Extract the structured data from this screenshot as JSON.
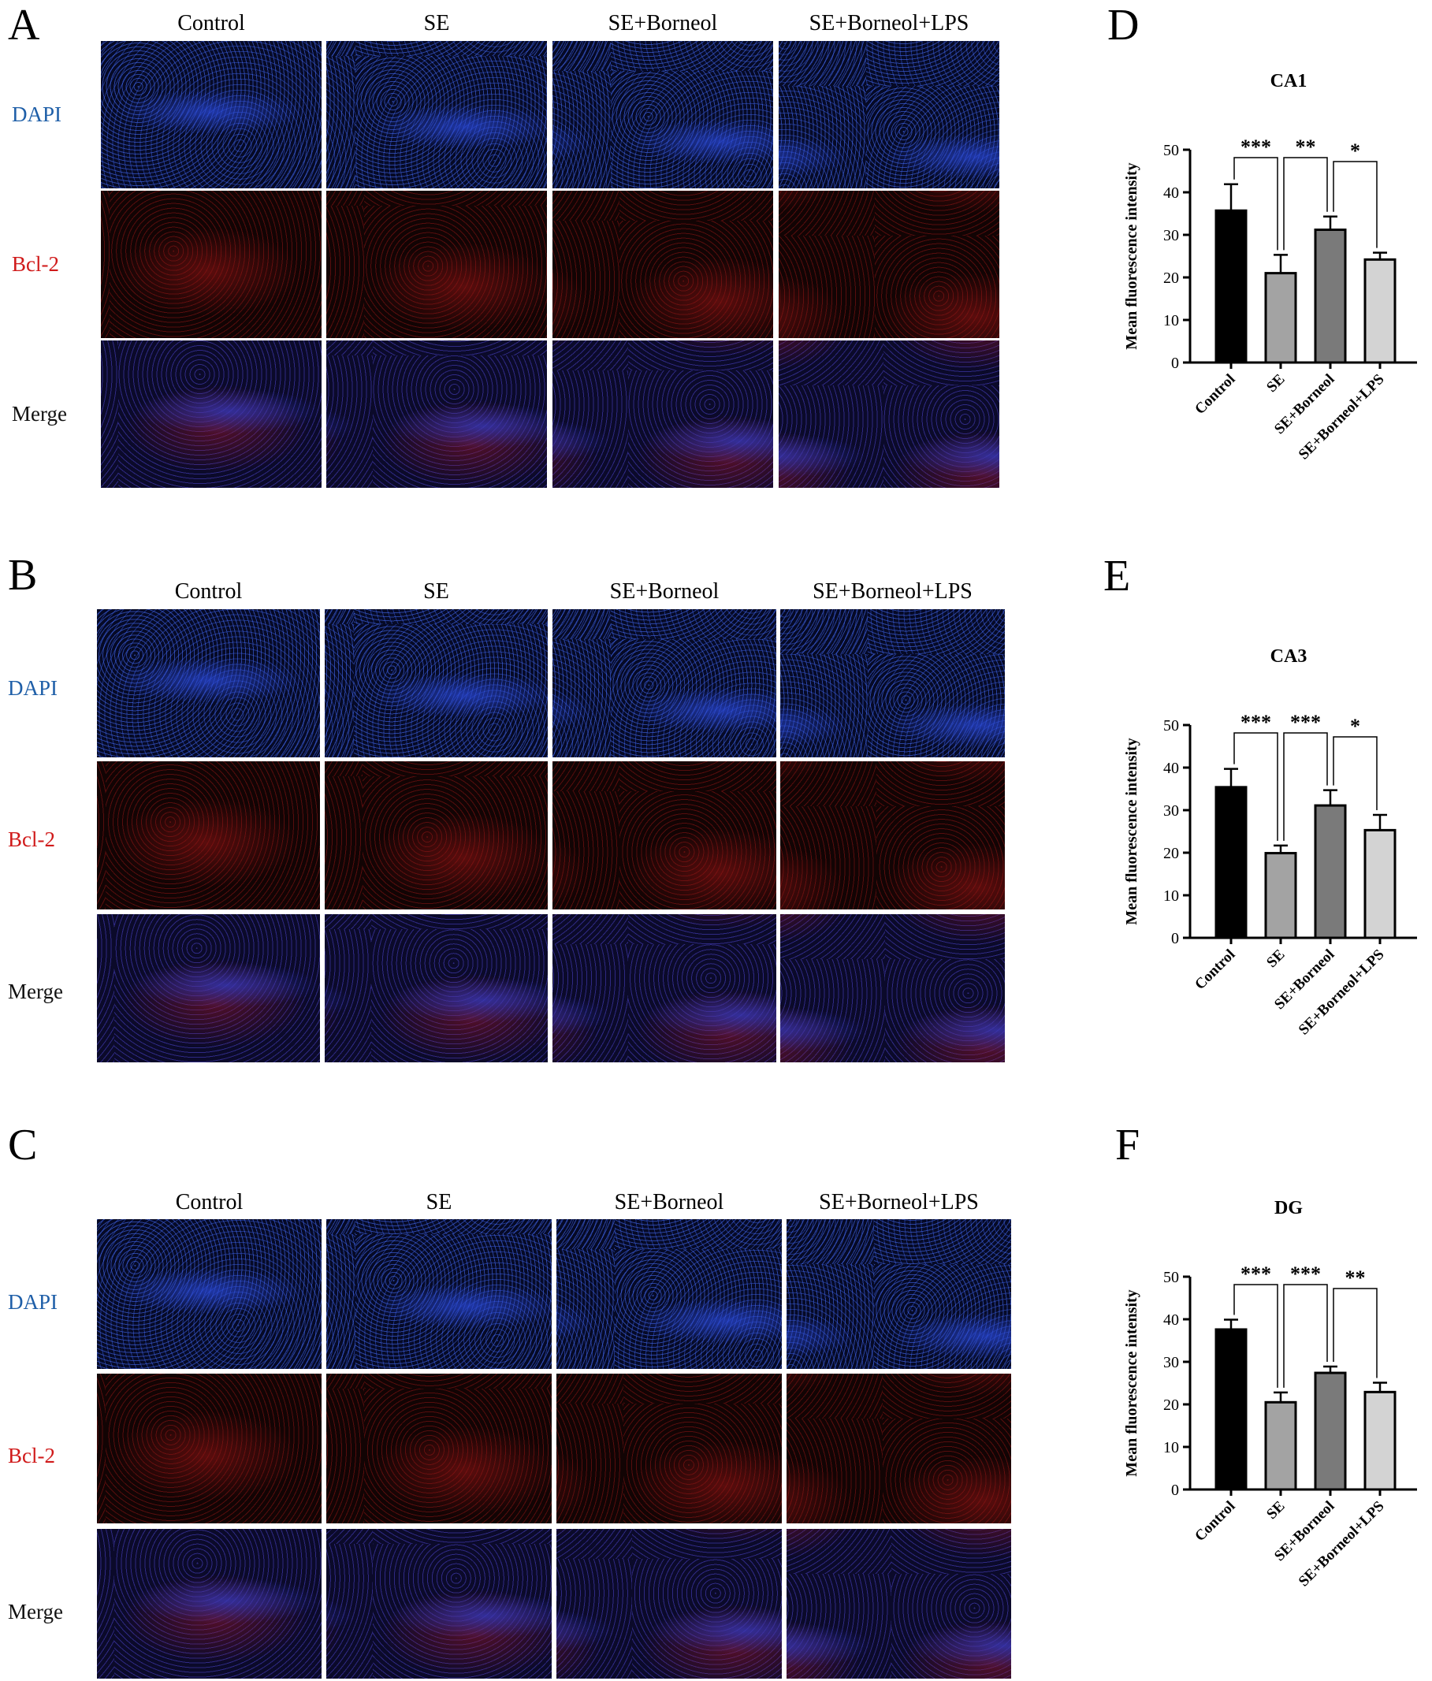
{
  "panels": {
    "a": {
      "letter": "A",
      "columns": [
        "Control",
        "SE",
        "SE+Borneol",
        "SE+Borneol+LPS"
      ],
      "rows": [
        "DAPI",
        "Bcl-2",
        "Merge"
      ]
    },
    "b": {
      "letter": "B",
      "columns": [
        "Control",
        "SE",
        "SE+Borneol",
        "SE+Borneol+LPS"
      ],
      "rows": [
        "DAPI",
        "Bcl-2",
        "Merge"
      ]
    },
    "c": {
      "letter": "C",
      "columns": [
        "Control",
        "SE",
        "SE+Borneol",
        "SE+Borneol+LPS"
      ],
      "rows": [
        "DAPI",
        "Bcl-2",
        "Merge"
      ]
    },
    "d": {
      "letter": "D"
    },
    "e": {
      "letter": "E"
    },
    "f": {
      "letter": "F"
    }
  },
  "colors": {
    "dapi_label": "#1f5fa8",
    "bcl2_label": "#d01a1a",
    "bars": [
      "#000000",
      "#a3a3a3",
      "#7a7a7a",
      "#d3d3d3"
    ]
  },
  "chart_data": [
    {
      "type": "bar",
      "title": "CA1",
      "ylabel": "Mean fluorescence intensity",
      "categories": [
        "Control",
        "SE",
        "SE+Borneol",
        "SE+Borneol+LPS"
      ],
      "values": [
        35.7,
        21.0,
        31.2,
        24.2
      ],
      "errors": [
        6.2,
        4.3,
        3.1,
        1.6
      ],
      "ylim": [
        0,
        50
      ],
      "yticks": [
        0,
        10,
        20,
        30,
        40,
        50
      ],
      "significance": [
        {
          "from": 0,
          "to": 1,
          "label": "***"
        },
        {
          "from": 1,
          "to": 2,
          "label": "**"
        },
        {
          "from": 2,
          "to": 3,
          "label": "*"
        }
      ]
    },
    {
      "type": "bar",
      "title": "CA3",
      "ylabel": "Mean fluorescence intensity",
      "categories": [
        "Control",
        "SE",
        "SE+Borneol",
        "SE+Borneol+LPS"
      ],
      "values": [
        35.4,
        19.9,
        31.1,
        25.3
      ],
      "errors": [
        4.3,
        1.8,
        3.6,
        3.6
      ],
      "ylim": [
        0,
        50
      ],
      "yticks": [
        0,
        10,
        20,
        30,
        40,
        50
      ],
      "significance": [
        {
          "from": 0,
          "to": 1,
          "label": "***"
        },
        {
          "from": 1,
          "to": 2,
          "label": "***"
        },
        {
          "from": 2,
          "to": 3,
          "label": "*"
        }
      ]
    },
    {
      "type": "bar",
      "title": "DG",
      "ylabel": "Mean fluorescence intensity",
      "categories": [
        "Control",
        "SE",
        "SE+Borneol",
        "SE+Borneol+LPS"
      ],
      "values": [
        37.6,
        20.5,
        27.4,
        22.9
      ],
      "errors": [
        2.3,
        2.3,
        1.5,
        2.2
      ],
      "ylim": [
        0,
        50
      ],
      "yticks": [
        0,
        10,
        20,
        30,
        40,
        50
      ],
      "significance": [
        {
          "from": 0,
          "to": 1,
          "label": "***"
        },
        {
          "from": 1,
          "to": 2,
          "label": "***"
        },
        {
          "from": 2,
          "to": 3,
          "label": "**"
        }
      ]
    }
  ]
}
